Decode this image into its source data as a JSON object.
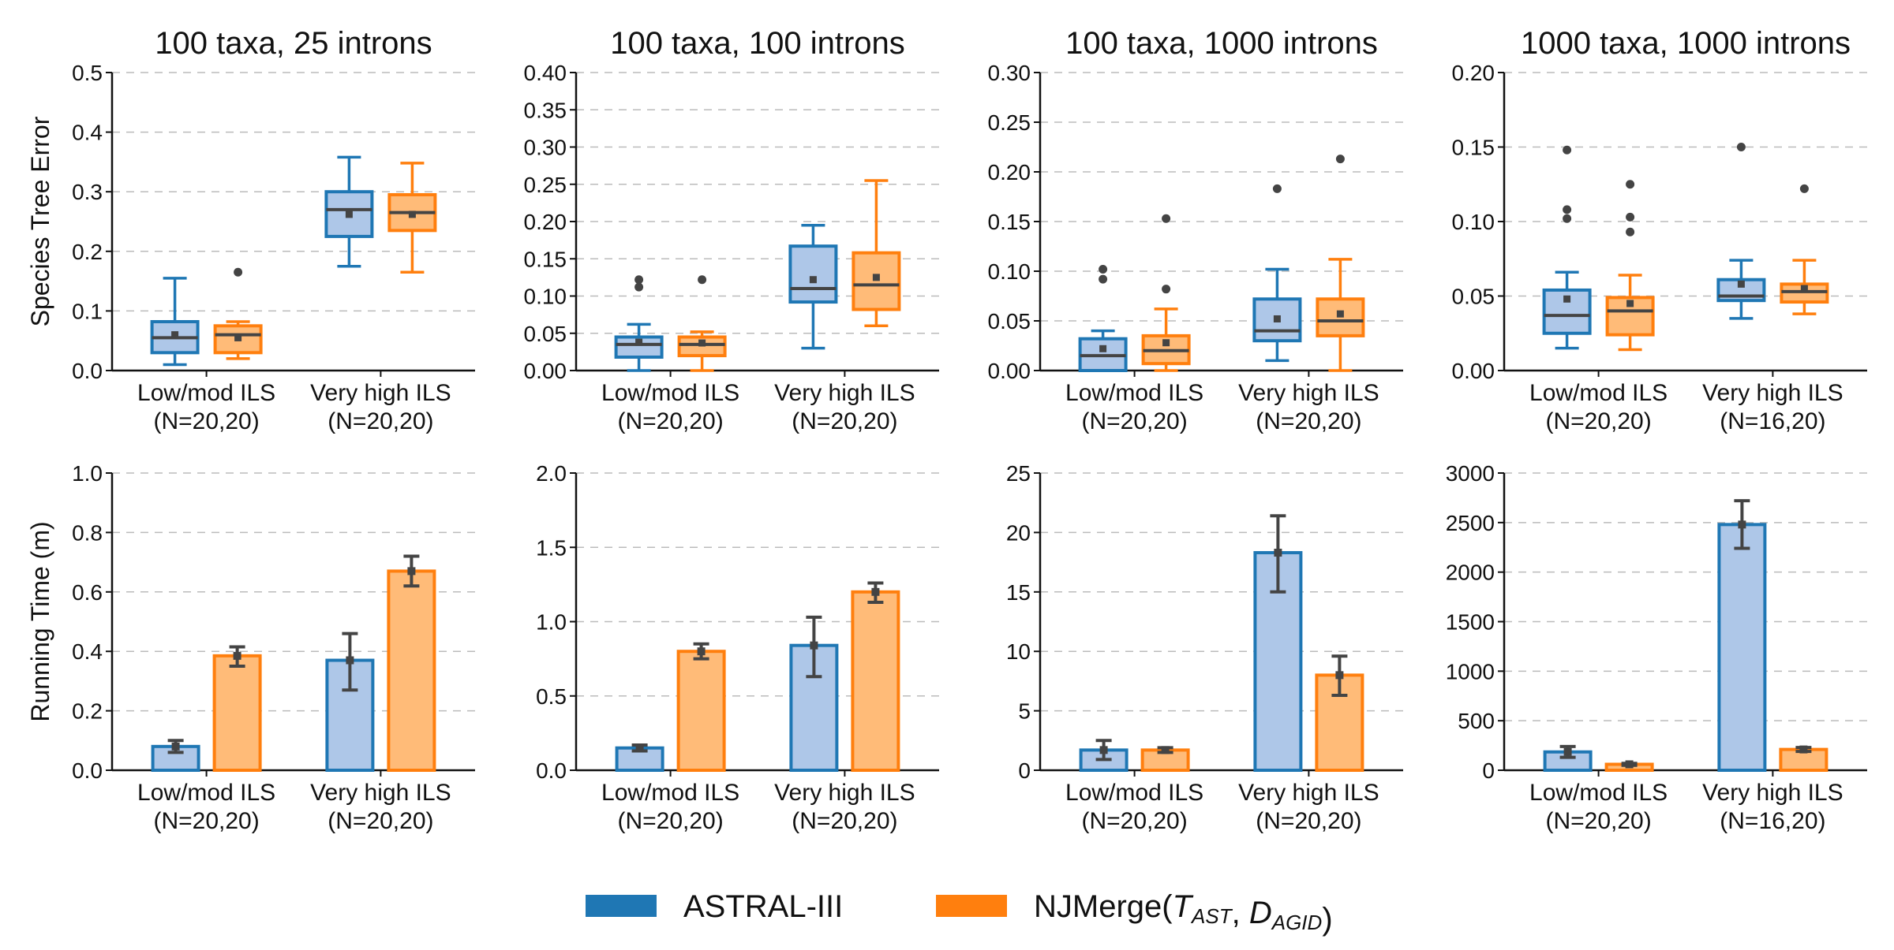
{
  "colors": {
    "astral_edge": "#1f77b4",
    "astral_fill": "#aec7e8",
    "njmerge_edge": "#ff7f0e",
    "njmerge_fill": "#ffbb78",
    "whisker": "#444444",
    "grid": "#bbbbbb"
  },
  "legend": [
    {
      "key": "astral",
      "label": "ASTRAL-III"
    },
    {
      "key": "njmerge",
      "label_main": "NJMerge(",
      "label_t": "T",
      "label_t_sub": "AST",
      "label_sep": ", ",
      "label_d": "D",
      "label_d_sub": "AGID",
      "label_close": ")"
    }
  ],
  "chart_data": [
    {
      "type": "box",
      "title": "100 taxa, 25 introns",
      "ylabel": "Species Tree Error",
      "ylim": [
        0,
        0.5
      ],
      "yticks": [
        "0.0",
        "0.1",
        "0.2",
        "0.3",
        "0.4",
        "0.5"
      ],
      "ytick_values": [
        0,
        0.1,
        0.2,
        0.3,
        0.4,
        0.5
      ],
      "categories": [
        {
          "label": "Low/mod ILS",
          "n": "(N=20,20)"
        },
        {
          "label": "Very high ILS",
          "n": "(N=20,20)"
        }
      ],
      "series": [
        {
          "key": "astral",
          "boxes": [
            {
              "wlo": 0.01,
              "q1": 0.03,
              "med": 0.055,
              "q3": 0.082,
              "whi": 0.155,
              "mean": 0.06,
              "outliers": []
            },
            {
              "wlo": 0.175,
              "q1": 0.225,
              "med": 0.27,
              "q3": 0.3,
              "whi": 0.358,
              "mean": 0.262,
              "outliers": []
            }
          ]
        },
        {
          "key": "njmerge",
          "boxes": [
            {
              "wlo": 0.02,
              "q1": 0.03,
              "med": 0.06,
              "q3": 0.075,
              "whi": 0.082,
              "mean": 0.055,
              "outliers": [
                0.165
              ]
            },
            {
              "wlo": 0.165,
              "q1": 0.235,
              "med": 0.265,
              "q3": 0.295,
              "whi": 0.348,
              "mean": 0.262,
              "outliers": []
            }
          ]
        }
      ]
    },
    {
      "type": "box",
      "title": "100 taxa, 100 introns",
      "ylabel": "",
      "ylim": [
        0,
        0.4
      ],
      "yticks": [
        "0.00",
        "0.05",
        "0.10",
        "0.15",
        "0.20",
        "0.25",
        "0.30",
        "0.35",
        "0.40"
      ],
      "ytick_values": [
        0,
        0.05,
        0.1,
        0.15,
        0.2,
        0.25,
        0.3,
        0.35,
        0.4
      ],
      "categories": [
        {
          "label": "Low/mod ILS",
          "n": "(N=20,20)"
        },
        {
          "label": "Very high ILS",
          "n": "(N=20,20)"
        }
      ],
      "series": [
        {
          "key": "astral",
          "boxes": [
            {
              "wlo": 0.0,
              "q1": 0.018,
              "med": 0.035,
              "q3": 0.045,
              "whi": 0.062,
              "mean": 0.038,
              "outliers": [
                0.112,
                0.122
              ]
            },
            {
              "wlo": 0.03,
              "q1": 0.092,
              "med": 0.11,
              "q3": 0.167,
              "whi": 0.195,
              "mean": 0.122,
              "outliers": []
            }
          ]
        },
        {
          "key": "njmerge",
          "boxes": [
            {
              "wlo": 0.0,
              "q1": 0.02,
              "med": 0.035,
              "q3": 0.045,
              "whi": 0.052,
              "mean": 0.037,
              "outliers": [
                0.122
              ]
            },
            {
              "wlo": 0.06,
              "q1": 0.082,
              "med": 0.115,
              "q3": 0.158,
              "whi": 0.255,
              "mean": 0.125,
              "outliers": []
            }
          ]
        }
      ]
    },
    {
      "type": "box",
      "title": "100 taxa, 1000 introns",
      "ylabel": "",
      "ylim": [
        0,
        0.3
      ],
      "yticks": [
        "0.00",
        "0.05",
        "0.10",
        "0.15",
        "0.20",
        "0.25",
        "0.30"
      ],
      "ytick_values": [
        0,
        0.05,
        0.1,
        0.15,
        0.2,
        0.25,
        0.3
      ],
      "categories": [
        {
          "label": "Low/mod ILS",
          "n": "(N=20,20)"
        },
        {
          "label": "Very high ILS",
          "n": "(N=20,20)"
        }
      ],
      "series": [
        {
          "key": "astral",
          "boxes": [
            {
              "wlo": 0.0,
              "q1": 0.0,
              "med": 0.015,
              "q3": 0.032,
              "whi": 0.04,
              "mean": 0.022,
              "outliers": [
                0.092,
                0.102
              ]
            },
            {
              "wlo": 0.01,
              "q1": 0.03,
              "med": 0.04,
              "q3": 0.072,
              "whi": 0.102,
              "mean": 0.052,
              "outliers": [
                0.183
              ]
            }
          ]
        },
        {
          "key": "njmerge",
          "boxes": [
            {
              "wlo": 0.0,
              "q1": 0.007,
              "med": 0.02,
              "q3": 0.035,
              "whi": 0.062,
              "mean": 0.028,
              "outliers": [
                0.082,
                0.153
              ]
            },
            {
              "wlo": 0.0,
              "q1": 0.035,
              "med": 0.05,
              "q3": 0.072,
              "whi": 0.112,
              "mean": 0.057,
              "outliers": [
                0.213
              ]
            }
          ]
        }
      ]
    },
    {
      "type": "box",
      "title": "1000 taxa, 1000 introns",
      "ylabel": "",
      "ylim": [
        0,
        0.2
      ],
      "yticks": [
        "0.00",
        "0.05",
        "0.10",
        "0.15",
        "0.20"
      ],
      "ytick_values": [
        0,
        0.05,
        0.1,
        0.15,
        0.2
      ],
      "categories": [
        {
          "label": "Low/mod ILS",
          "n": "(N=20,20)"
        },
        {
          "label": "Very high ILS",
          "n": "(N=16,20)"
        }
      ],
      "series": [
        {
          "key": "astral",
          "boxes": [
            {
              "wlo": 0.015,
              "q1": 0.025,
              "med": 0.037,
              "q3": 0.054,
              "whi": 0.066,
              "mean": 0.048,
              "outliers": [
                0.102,
                0.108,
                0.148
              ]
            },
            {
              "wlo": 0.035,
              "q1": 0.047,
              "med": 0.05,
              "q3": 0.061,
              "whi": 0.074,
              "mean": 0.058,
              "outliers": [
                0.15
              ]
            }
          ]
        },
        {
          "key": "njmerge",
          "boxes": [
            {
              "wlo": 0.014,
              "q1": 0.024,
              "med": 0.04,
              "q3": 0.049,
              "whi": 0.064,
              "mean": 0.045,
              "outliers": [
                0.093,
                0.103,
                0.125
              ]
            },
            {
              "wlo": 0.038,
              "q1": 0.046,
              "med": 0.053,
              "q3": 0.058,
              "whi": 0.074,
              "mean": 0.055,
              "outliers": [
                0.122
              ]
            }
          ]
        }
      ]
    },
    {
      "type": "bar",
      "title": "",
      "ylabel": "Running Time (m)",
      "ylim": [
        0,
        1.0
      ],
      "yticks": [
        "0.0",
        "0.2",
        "0.4",
        "0.6",
        "0.8",
        "1.0"
      ],
      "ytick_values": [
        0,
        0.2,
        0.4,
        0.6,
        0.8,
        1.0
      ],
      "categories": [
        {
          "label": "Low/mod ILS",
          "n": "(N=20,20)"
        },
        {
          "label": "Very high ILS",
          "n": "(N=20,20)"
        }
      ],
      "series": [
        {
          "key": "astral",
          "values": [
            0.08,
            0.37
          ],
          "err": [
            [
              0.06,
              0.1
            ],
            [
              0.27,
              0.46
            ]
          ]
        },
        {
          "key": "njmerge",
          "values": [
            0.385,
            0.67
          ],
          "err": [
            [
              0.35,
              0.415
            ],
            [
              0.62,
              0.72
            ]
          ]
        }
      ]
    },
    {
      "type": "bar",
      "title": "",
      "ylabel": "",
      "ylim": [
        0,
        2.0
      ],
      "yticks": [
        "0.0",
        "0.5",
        "1.0",
        "1.5",
        "2.0"
      ],
      "ytick_values": [
        0,
        0.5,
        1.0,
        1.5,
        2.0
      ],
      "categories": [
        {
          "label": "Low/mod ILS",
          "n": "(N=20,20)"
        },
        {
          "label": "Very high ILS",
          "n": "(N=20,20)"
        }
      ],
      "series": [
        {
          "key": "astral",
          "values": [
            0.15,
            0.84
          ],
          "err": [
            [
              0.13,
              0.17
            ],
            [
              0.63,
              1.03
            ]
          ]
        },
        {
          "key": "njmerge",
          "values": [
            0.8,
            1.2
          ],
          "err": [
            [
              0.75,
              0.85
            ],
            [
              1.13,
              1.26
            ]
          ]
        }
      ]
    },
    {
      "type": "bar",
      "title": "",
      "ylabel": "",
      "ylim": [
        0,
        25
      ],
      "yticks": [
        "0",
        "5",
        "10",
        "15",
        "20",
        "25"
      ],
      "ytick_values": [
        0,
        5,
        10,
        15,
        20,
        25
      ],
      "categories": [
        {
          "label": "Low/mod ILS",
          "n": "(N=20,20)"
        },
        {
          "label": "Very high ILS",
          "n": "(N=20,20)"
        }
      ],
      "series": [
        {
          "key": "astral",
          "values": [
            1.7,
            18.3
          ],
          "err": [
            [
              0.9,
              2.5
            ],
            [
              15.0,
              21.4
            ]
          ]
        },
        {
          "key": "njmerge",
          "values": [
            1.7,
            8.0
          ],
          "err": [
            [
              1.5,
              1.9
            ],
            [
              6.3,
              9.6
            ]
          ]
        }
      ]
    },
    {
      "type": "bar",
      "title": "",
      "ylabel": "",
      "ylim": [
        0,
        3000
      ],
      "yticks": [
        "0",
        "500",
        "1000",
        "1500",
        "2000",
        "2500",
        "3000"
      ],
      "ytick_values": [
        0,
        500,
        1000,
        1500,
        2000,
        2500,
        3000
      ],
      "categories": [
        {
          "label": "Low/mod ILS",
          "n": "(N=20,20)"
        },
        {
          "label": "Very high ILS",
          "n": "(N=16,20)"
        }
      ],
      "series": [
        {
          "key": "astral",
          "values": [
            185,
            2480
          ],
          "err": [
            [
              130,
              240
            ],
            [
              2240,
              2720
            ]
          ]
        },
        {
          "key": "njmerge",
          "values": [
            60,
            210
          ],
          "err": [
            [
              50,
              70
            ],
            [
              190,
              230
            ]
          ]
        }
      ]
    }
  ]
}
